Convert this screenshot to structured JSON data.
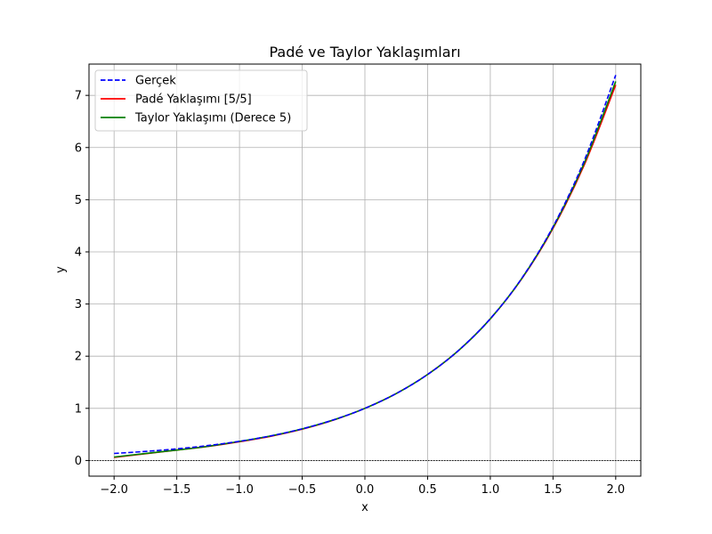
{
  "chart_data": {
    "type": "line",
    "title": "Padé ve Taylor Yaklaşımları",
    "xlabel": "x",
    "ylabel": "y",
    "xlim": [
      -2.2,
      2.2
    ],
    "ylim": [
      -0.3,
      7.6
    ],
    "xticks": [
      -2.0,
      -1.5,
      -1.0,
      -0.5,
      0.0,
      0.5,
      1.0,
      1.5,
      2.0
    ],
    "xtick_labels": [
      "−2.0",
      "−1.5",
      "−1.0",
      "−0.5",
      "0.0",
      "0.5",
      "1.0",
      "1.5",
      "2.0"
    ],
    "yticks": [
      0,
      1,
      2,
      3,
      4,
      5,
      6,
      7
    ],
    "ytick_labels": [
      "0",
      "1",
      "2",
      "3",
      "4",
      "5",
      "6",
      "7"
    ],
    "grid": true,
    "legend_position": "top-left",
    "reference_line": {
      "y": 0,
      "style": "dotted",
      "color": "#000000"
    },
    "x": [
      -2.0,
      -1.75,
      -1.5,
      -1.25,
      -1.0,
      -0.75,
      -0.5,
      -0.25,
      0.0,
      0.25,
      0.5,
      0.75,
      1.0,
      1.25,
      1.5,
      1.75,
      2.0
    ],
    "series": [
      {
        "name": "Gerçek",
        "color": "#0000ff",
        "style": "dashed",
        "values": [
          0.135,
          0.174,
          0.223,
          0.287,
          0.368,
          0.472,
          0.607,
          0.779,
          1.0,
          1.284,
          1.649,
          2.117,
          2.718,
          3.49,
          4.482,
          5.755,
          7.389
        ]
      },
      {
        "name": "Padé Yaklaşımı [5/5]",
        "color": "#ff0000",
        "style": "solid",
        "values": [
          0.06,
          0.13,
          0.2,
          0.27,
          0.36,
          0.465,
          0.6,
          0.775,
          1.0,
          1.284,
          1.649,
          2.115,
          2.715,
          3.48,
          4.45,
          5.67,
          7.2
        ]
      },
      {
        "name": "Taylor Yaklaşımı (Derece 5)",
        "color": "#008000",
        "style": "solid",
        "values": [
          0.067,
          0.134,
          0.2,
          0.272,
          0.367,
          0.472,
          0.607,
          0.779,
          1.0,
          1.284,
          1.649,
          2.117,
          2.717,
          3.487,
          4.467,
          5.708,
          7.267
        ]
      }
    ]
  }
}
